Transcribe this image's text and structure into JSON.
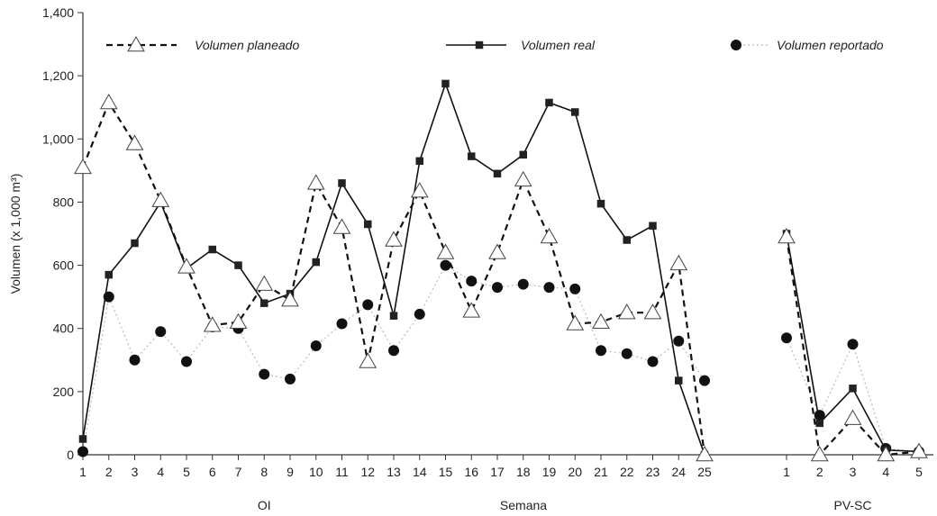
{
  "chart_data": {
    "type": "line",
    "ylabel": "Volumen (x 1,000 m³)",
    "xlabel": "Semana",
    "group_labels": [
      {
        "label": "OI",
        "center": 8
      },
      {
        "label": "PV-SC",
        "center": 3
      }
    ],
    "ylim": [
      0,
      1400
    ],
    "yticks": [
      {
        "value": 0,
        "label": "0"
      },
      {
        "value": 200,
        "label": "200"
      },
      {
        "value": 400,
        "label": "400"
      },
      {
        "value": 600,
        "label": "600"
      },
      {
        "value": 800,
        "label": "800"
      },
      {
        "value": 1000,
        "label": "1,000"
      },
      {
        "value": 1200,
        "label": "1,200"
      },
      {
        "value": 1400,
        "label": "1,400"
      }
    ],
    "legend": {
      "placement": "top"
    },
    "groups": [
      {
        "name": "OI",
        "x": [
          "1",
          "2",
          "3",
          "4",
          "5",
          "6",
          "7",
          "8",
          "9",
          "10",
          "11",
          "12",
          "13",
          "14",
          "15",
          "16",
          "17",
          "18",
          "19",
          "20",
          "21",
          "22",
          "23",
          "24",
          "25"
        ],
        "series": [
          {
            "name": "Volumen planeado",
            "style": "dashed-triangle",
            "values": [
              910,
              1115,
              985,
              805,
              595,
              410,
              420,
              540,
              490,
              860,
              720,
              295,
              680,
              835,
              640,
              455,
              640,
              870,
              690,
              415,
              420,
              450,
              450,
              605,
              0
            ]
          },
          {
            "name": "Volumen real",
            "style": "solid-square",
            "values": [
              50,
              570,
              670,
              800,
              590,
              650,
              600,
              480,
              510,
              610,
              860,
              730,
              440,
              930,
              1175,
              945,
              890,
              950,
              1115,
              1085,
              795,
              680,
              725,
              235,
              0
            ]
          },
          {
            "name": "Volumen reportado",
            "style": "dotted-circle",
            "values": [
              10,
              500,
              300,
              390,
              295,
              405,
              400,
              255,
              240,
              345,
              415,
              475,
              330,
              445,
              600,
              550,
              530,
              540,
              530,
              525,
              330,
              320,
              295,
              360,
              235
            ]
          }
        ]
      },
      {
        "name": "PV-SC",
        "x": [
          "1",
          "2",
          "3",
          "4",
          "5"
        ],
        "series": [
          {
            "name": "Volumen planeado",
            "style": "dashed-triangle",
            "values": [
              690,
              0,
              115,
              0,
              10
            ]
          },
          {
            "name": "Volumen real",
            "style": "solid-square",
            "values": [
              700,
              100,
              210,
              15,
              10
            ]
          },
          {
            "name": "Volumen reportado",
            "style": "dotted-circle",
            "values": [
              370,
              125,
              350,
              20,
              10
            ]
          }
        ]
      }
    ]
  }
}
